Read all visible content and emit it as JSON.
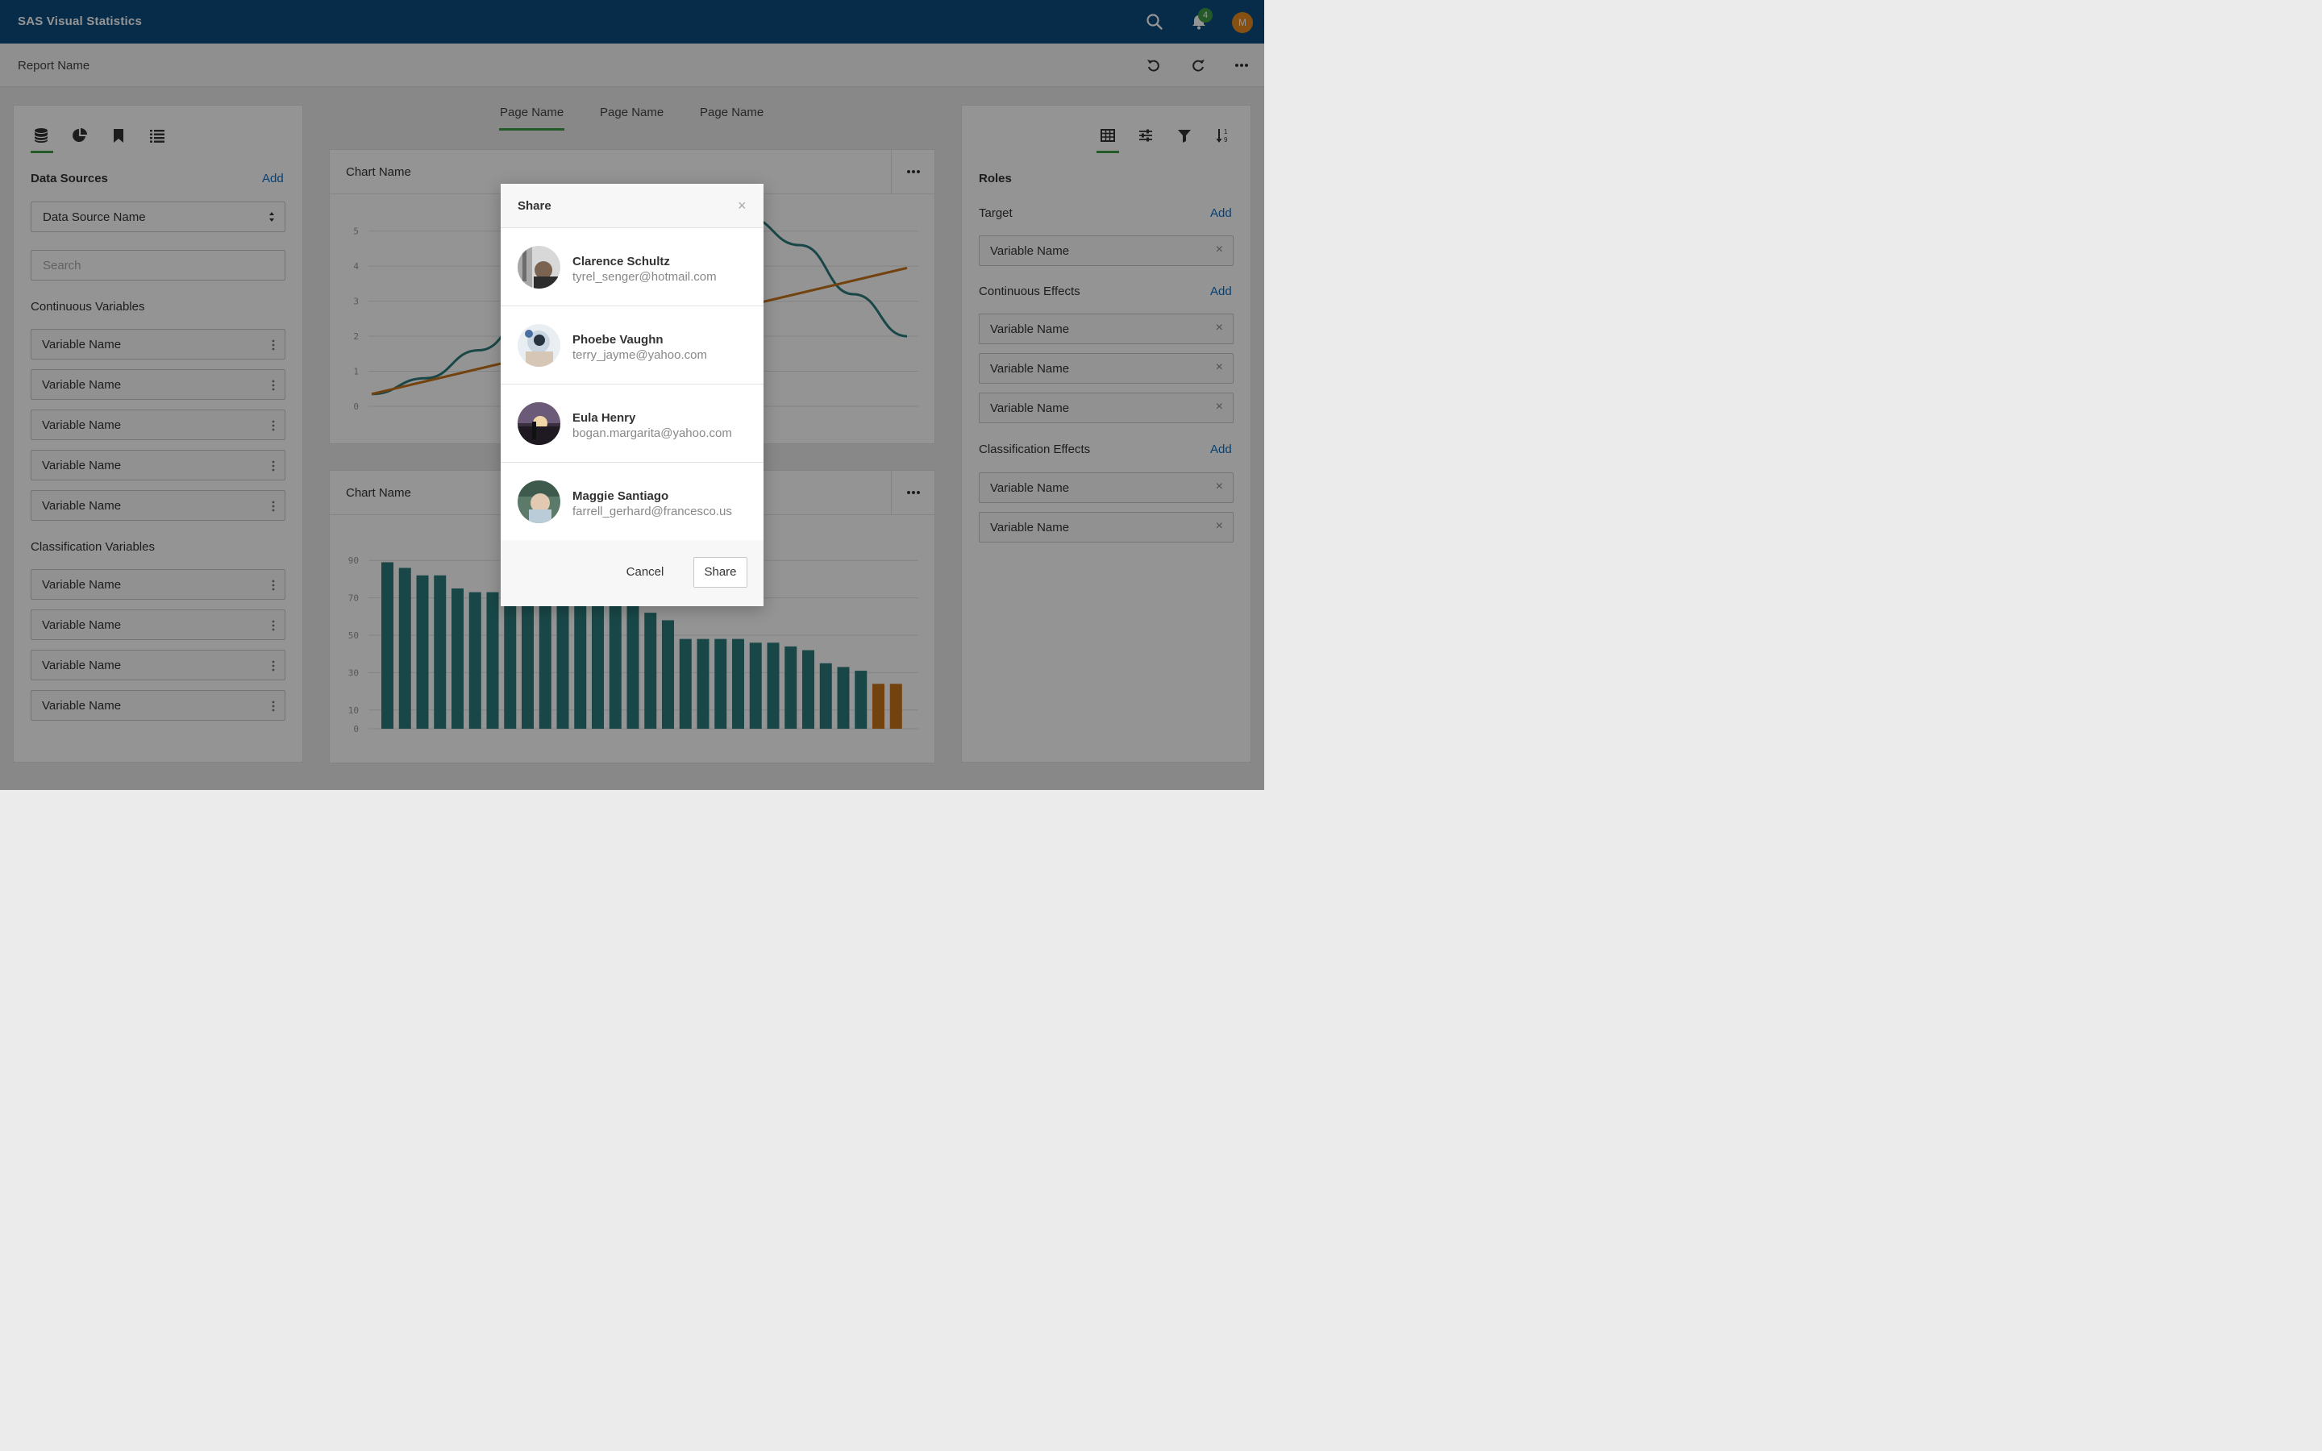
{
  "header": {
    "app_title": "SAS Visual Statistics",
    "notification_count": "4",
    "user_initial": "M"
  },
  "report": {
    "name": "Report Name"
  },
  "left_panel": {
    "data_sources_title": "Data Sources",
    "add_label": "Add",
    "data_source_selected": "Data Source Name",
    "search_placeholder": "Search",
    "continuous_title": "Continuous Variables",
    "continuous_items": [
      "Variable Name",
      "Variable Name",
      "Variable Name",
      "Variable Name",
      "Variable Name"
    ],
    "classification_title": "Classification Variables",
    "classification_items": [
      "Variable Name",
      "Variable Name",
      "Variable Name",
      "Variable Name"
    ]
  },
  "pages": {
    "tabs": [
      "Page Name",
      "Page Name",
      "Page Name"
    ]
  },
  "charts": [
    {
      "title": "Chart Name"
    },
    {
      "title": "Chart Name"
    }
  ],
  "chart_data": [
    {
      "type": "line",
      "y_ticks": [
        "0",
        "1",
        "2",
        "3",
        "4",
        "5"
      ],
      "ylim": [
        0,
        5.5
      ],
      "series": [
        {
          "color": "#2c7a7b",
          "x": [
            0,
            1,
            2,
            3,
            4,
            5,
            6,
            7,
            8,
            9,
            10
          ],
          "values": [
            0.35,
            0.8,
            1.6,
            2.7,
            3.8,
            4.6,
            5.2,
            5.4,
            4.6,
            3.2,
            2.0
          ]
        },
        {
          "color": "#c5731a",
          "x": [
            0,
            10
          ],
          "values": [
            0.35,
            3.95
          ]
        }
      ]
    },
    {
      "type": "bar",
      "y_ticks": [
        "0",
        "10",
        "30",
        "50",
        "70",
        "90"
      ],
      "ylim": [
        0,
        100
      ],
      "colors": {
        "primary": "#2c7a7b",
        "highlight": "#c5731a"
      },
      "values": [
        89,
        86,
        82,
        82,
        75,
        73,
        73,
        68,
        68,
        68,
        68,
        68,
        68,
        68,
        68,
        62,
        58,
        48,
        48,
        48,
        48,
        46,
        46,
        44,
        42,
        35,
        33,
        31,
        24,
        24
      ],
      "highlight_from_index": 28
    }
  ],
  "right_panel": {
    "roles_title": "Roles",
    "target_title": "Target",
    "target_items": [
      "Variable Name"
    ],
    "continuous_effects_title": "Continuous Effects",
    "continuous_effects_items": [
      "Variable Name",
      "Variable Name",
      "Variable Name"
    ],
    "classification_effects_title": "Classification Effects",
    "classification_effects_items": [
      "Variable Name",
      "Variable Name"
    ],
    "add_label": "Add"
  },
  "modal": {
    "title": "Share",
    "people": [
      {
        "name": "Clarence Schultz",
        "email": "tyrel_senger@hotmail.com"
      },
      {
        "name": "Phoebe Vaughn",
        "email": "terry_jayme@yahoo.com"
      },
      {
        "name": "Eula Henry",
        "email": "bogan.margarita@yahoo.com"
      },
      {
        "name": "Maggie Santiago",
        "email": "farrell_gerhard@francesco.us"
      }
    ],
    "cancel_label": "Cancel",
    "share_label": "Share"
  }
}
